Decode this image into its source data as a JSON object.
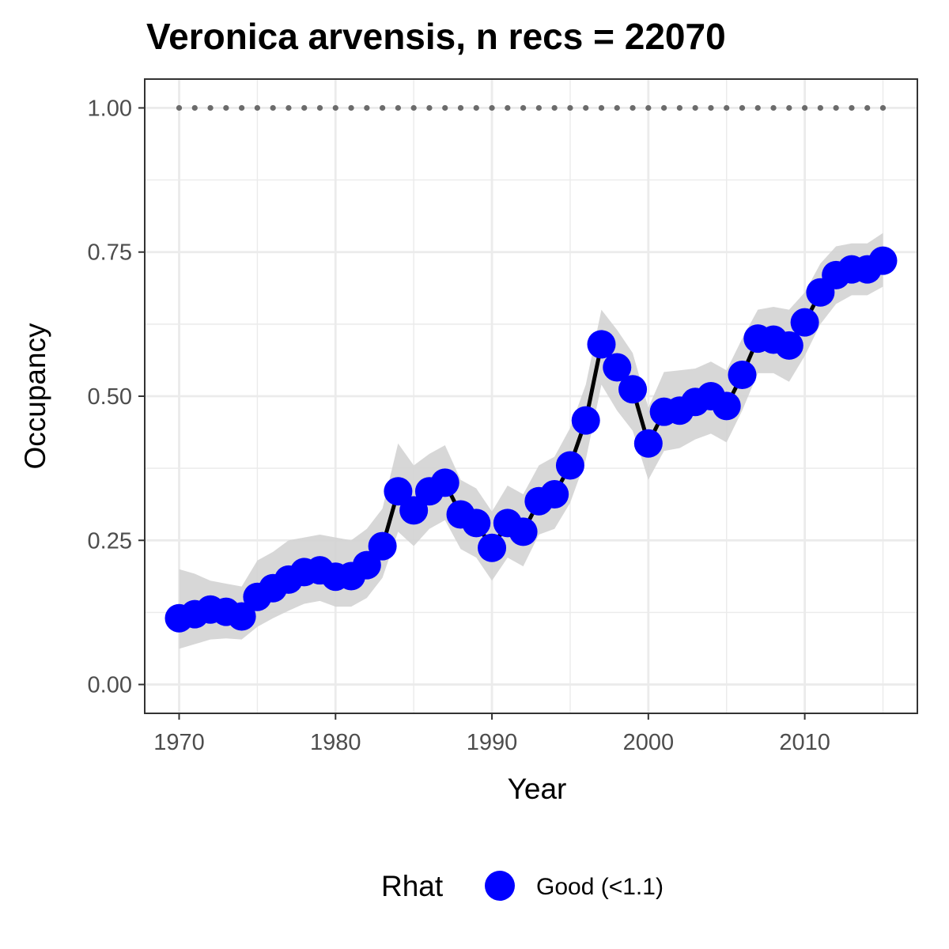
{
  "chart_data": {
    "type": "line",
    "title": "Veronica arvensis, n recs = 22070",
    "xlabel": "Year",
    "ylabel": "Occupancy",
    "xlim": [
      1967.8,
      2017.2
    ],
    "ylim": [
      -0.05,
      1.05
    ],
    "x_ticks": [
      1970,
      1980,
      1990,
      2000,
      2010
    ],
    "x_tick_labels": [
      "1970",
      "1980",
      "1990",
      "2000",
      "2010"
    ],
    "y_ticks": [
      0,
      0.25,
      0.5,
      0.75,
      1.0
    ],
    "y_tick_labels": [
      "0.00",
      "0.25",
      "0.50",
      "0.75",
      "1.00"
    ],
    "grid": true,
    "legend": {
      "position": "bottom",
      "title": "Rhat",
      "entries": [
        "Good (<1.1)"
      ]
    },
    "colors": {
      "points": "#0000ff",
      "line": "#000000",
      "ribbon": "#d3d3d3",
      "reference": "#6b6b6b",
      "grid": "#ebebeb",
      "panel_border": "#333333"
    },
    "series": [
      {
        "x": [
          1970,
          1971,
          1972,
          1973,
          1974,
          1975,
          1976,
          1977,
          1978,
          1979,
          1980,
          1981,
          1982,
          1983,
          1984,
          1985,
          1986,
          1987,
          1988,
          1989,
          1990,
          1991,
          1992,
          1993,
          1994,
          1995,
          1996,
          1997,
          1998,
          1999,
          2000,
          2001,
          2002,
          2003,
          2004,
          2005,
          2006,
          2007,
          2008,
          2009,
          2010,
          2011,
          2012,
          2013,
          2014,
          2015
        ],
        "values": [
          0.115,
          0.122,
          0.13,
          0.126,
          0.118,
          0.152,
          0.167,
          0.182,
          0.195,
          0.198,
          0.187,
          0.188,
          0.207,
          0.24,
          0.335,
          0.302,
          0.335,
          0.35,
          0.295,
          0.28,
          0.237,
          0.28,
          0.265,
          0.318,
          0.33,
          0.38,
          0.458,
          0.59,
          0.55,
          0.512,
          0.418,
          0.473,
          0.475,
          0.49,
          0.5,
          0.483,
          0.537,
          0.6,
          0.598,
          0.588,
          0.628,
          0.68,
          0.71,
          0.72,
          0.72,
          0.735
        ],
        "lower": [
          0.062,
          0.07,
          0.078,
          0.08,
          0.078,
          0.1,
          0.115,
          0.128,
          0.14,
          0.145,
          0.135,
          0.135,
          0.15,
          0.185,
          0.265,
          0.24,
          0.27,
          0.285,
          0.235,
          0.22,
          0.18,
          0.22,
          0.205,
          0.26,
          0.27,
          0.315,
          0.39,
          0.52,
          0.475,
          0.44,
          0.355,
          0.405,
          0.41,
          0.425,
          0.435,
          0.42,
          0.475,
          0.54,
          0.54,
          0.525,
          0.57,
          0.625,
          0.66,
          0.675,
          0.675,
          0.69
        ],
        "upper": [
          0.2,
          0.192,
          0.18,
          0.175,
          0.17,
          0.215,
          0.23,
          0.25,
          0.255,
          0.26,
          0.255,
          0.25,
          0.27,
          0.305,
          0.418,
          0.38,
          0.4,
          0.415,
          0.355,
          0.34,
          0.3,
          0.345,
          0.33,
          0.38,
          0.395,
          0.445,
          0.52,
          0.65,
          0.615,
          0.575,
          0.48,
          0.542,
          0.545,
          0.548,
          0.56,
          0.545,
          0.6,
          0.65,
          0.655,
          0.65,
          0.68,
          0.73,
          0.76,
          0.765,
          0.765,
          0.783
        ]
      }
    ],
    "reference_line": {
      "value": 1.0,
      "style": "dotted"
    }
  }
}
